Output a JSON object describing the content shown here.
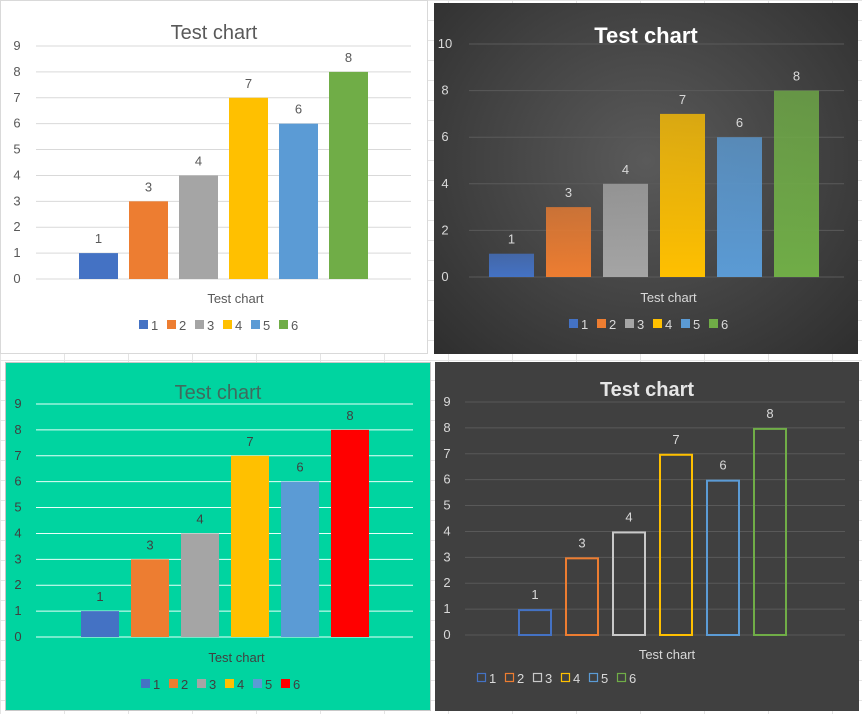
{
  "chart_data": [
    {
      "type": "bar",
      "title": "Test chart",
      "xlabel": "Test chart",
      "ylabel": "",
      "ylim": [
        0,
        9
      ],
      "yticks": [
        0,
        1,
        2,
        3,
        4,
        5,
        6,
        7,
        8,
        9
      ],
      "grid": true,
      "legend": "bottom",
      "style": "solid",
      "series": [
        {
          "name": "1",
          "value": 1,
          "color": "#4472c4"
        },
        {
          "name": "2",
          "value": 3,
          "color": "#ed7d31"
        },
        {
          "name": "3",
          "value": 4,
          "color": "#a5a5a5"
        },
        {
          "name": "4",
          "value": 7,
          "color": "#ffc000"
        },
        {
          "name": "5",
          "value": 6,
          "color": "#5b9bd5"
        },
        {
          "name": "6",
          "value": 8,
          "color": "#70ad47"
        }
      ],
      "colors": {
        "background": "#ffffff",
        "title": "#595959",
        "text": "#595959",
        "grid": "#d9d9d9"
      }
    },
    {
      "type": "bar",
      "title": "Test chart",
      "xlabel": "Test chart",
      "ylabel": "",
      "ylim": [
        0,
        10
      ],
      "yticks": [
        0,
        2,
        4,
        6,
        8,
        10
      ],
      "grid": true,
      "legend": "bottom",
      "style": "gradient",
      "series": [
        {
          "name": "1",
          "value": 1,
          "color": "#4472c4"
        },
        {
          "name": "2",
          "value": 3,
          "color": "#ed7d31"
        },
        {
          "name": "3",
          "value": 4,
          "color": "#a5a5a5"
        },
        {
          "name": "4",
          "value": 7,
          "color": "#ffc000"
        },
        {
          "name": "5",
          "value": 6,
          "color": "#5b9bd5"
        },
        {
          "name": "6",
          "value": 8,
          "color": "#70ad47"
        }
      ],
      "colors": {
        "background": "#404040",
        "title": "#ffffff",
        "text": "#d9d9d9",
        "grid": "#5a5a5a"
      }
    },
    {
      "type": "bar",
      "title": "Test chart",
      "xlabel": "Test chart",
      "ylabel": "",
      "ylim": [
        0,
        9
      ],
      "yticks": [
        0,
        1,
        2,
        3,
        4,
        5,
        6,
        7,
        8,
        9
      ],
      "grid": true,
      "legend": "bottom",
      "style": "solid",
      "series": [
        {
          "name": "1",
          "value": 1,
          "color": "#4472c4"
        },
        {
          "name": "2",
          "value": 3,
          "color": "#ed7d31"
        },
        {
          "name": "3",
          "value": 4,
          "color": "#a5a5a5"
        },
        {
          "name": "4",
          "value": 7,
          "color": "#ffc000"
        },
        {
          "name": "5",
          "value": 6,
          "color": "#5b9bd5"
        },
        {
          "name": "6",
          "value": 8,
          "color": "#ff0000"
        }
      ],
      "colors": {
        "background": "#00d4a0",
        "title": "#3f6b5e",
        "text": "#404040",
        "grid": "#e8fff8"
      }
    },
    {
      "type": "bar",
      "title": "Test chart",
      "xlabel": "Test chart",
      "ylabel": "",
      "ylim": [
        0,
        9
      ],
      "yticks": [
        0,
        1,
        2,
        3,
        4,
        5,
        6,
        7,
        8,
        9
      ],
      "grid": true,
      "legend": "bottom-left",
      "style": "outline",
      "series": [
        {
          "name": "1",
          "value": 1,
          "color": "#4472c4"
        },
        {
          "name": "2",
          "value": 3,
          "color": "#ed7d31"
        },
        {
          "name": "3",
          "value": 4,
          "color": "#c9c9c9"
        },
        {
          "name": "4",
          "value": 7,
          "color": "#ffc000"
        },
        {
          "name": "5",
          "value": 6,
          "color": "#5b9bd5"
        },
        {
          "name": "6",
          "value": 8,
          "color": "#70ad47"
        }
      ],
      "colors": {
        "background": "#404040",
        "title": "#e6e6e6",
        "text": "#d9d9d9",
        "grid": "#595959"
      }
    }
  ]
}
